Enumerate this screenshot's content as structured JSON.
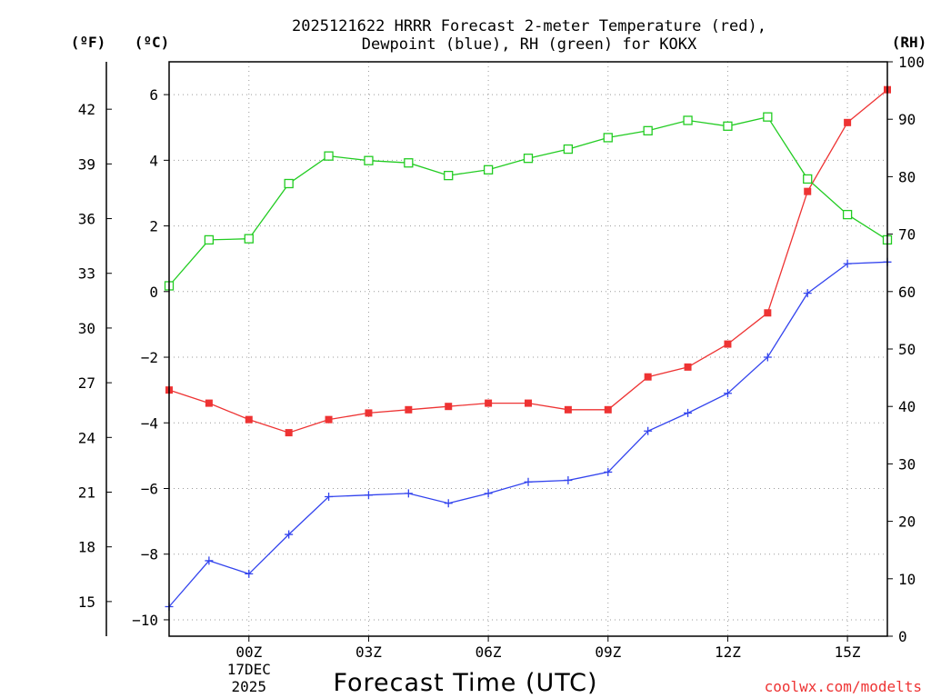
{
  "chart_data": {
    "type": "line",
    "title_line1": "2025121622 HRRR Forecast 2-meter Temperature (red),",
    "title_line2": "Dewpoint (blue), RH (green) for KOKX",
    "xlabel": "Forecast Time (UTC)",
    "x": [
      -2,
      -1,
      0,
      1,
      2,
      3,
      4,
      5,
      6,
      7,
      8,
      9,
      10,
      11,
      12,
      13,
      14,
      15,
      16
    ],
    "xlim": [
      -2,
      16
    ],
    "x_ticks": [
      {
        "x": 0,
        "label": "00Z",
        "sub1": "17DEC",
        "sub2": "2025"
      },
      {
        "x": 3,
        "label": "03Z"
      },
      {
        "x": 6,
        "label": "06Z"
      },
      {
        "x": 9,
        "label": "09Z"
      },
      {
        "x": 12,
        "label": "12Z"
      },
      {
        "x": 15,
        "label": "15Z"
      }
    ],
    "y_celsius": {
      "unit_label": "(ºC)",
      "range": [
        -10.5,
        7
      ],
      "ticks": [
        -10,
        -8,
        -6,
        -4,
        -2,
        0,
        2,
        4,
        6
      ],
      "tick_labels": [
        "−10",
        "−8",
        "−6",
        "−4",
        "−2",
        "0",
        "2",
        "4",
        "6"
      ]
    },
    "y_fahrenheit": {
      "unit_label": "(ºF)",
      "ticks": [
        15,
        18,
        21,
        24,
        27,
        30,
        33,
        36,
        39,
        42
      ]
    },
    "y_rh": {
      "unit_label": "(RH)",
      "range": [
        0,
        100
      ],
      "ticks": [
        0,
        10,
        20,
        30,
        40,
        50,
        60,
        70,
        80,
        90,
        100
      ]
    },
    "series": [
      {
        "name": "Temperature",
        "axis": "celsius",
        "color": "#ee3333",
        "marker": "filled-square",
        "values": [
          -3.0,
          -3.4,
          -3.9,
          -4.3,
          -3.9,
          -3.7,
          -3.6,
          -3.5,
          -3.4,
          -3.4,
          -3.6,
          -3.6,
          -2.6,
          -2.3,
          -1.6,
          -0.65,
          3.05,
          5.15,
          6.15
        ]
      },
      {
        "name": "Dewpoint",
        "axis": "celsius",
        "color": "#3344ee",
        "marker": "plus",
        "values": [
          -9.6,
          -8.2,
          -8.6,
          -7.4,
          -6.25,
          -6.2,
          -6.15,
          -6.45,
          -6.15,
          -5.8,
          -5.75,
          -5.5,
          -4.25,
          -3.7,
          -3.1,
          -2.0,
          -0.05,
          0.85,
          0.9
        ]
      },
      {
        "name": "RH",
        "axis": "rh",
        "color": "#22cc22",
        "marker": "open-square",
        "values": [
          61.0,
          69.0,
          69.2,
          78.8,
          83.6,
          82.8,
          82.4,
          80.2,
          81.2,
          83.2,
          84.8,
          86.8,
          88.0,
          89.8,
          88.8,
          90.4,
          79.6,
          73.4,
          69.0
        ]
      }
    ],
    "grid": true,
    "credit": "coolwx.com/modelts"
  }
}
